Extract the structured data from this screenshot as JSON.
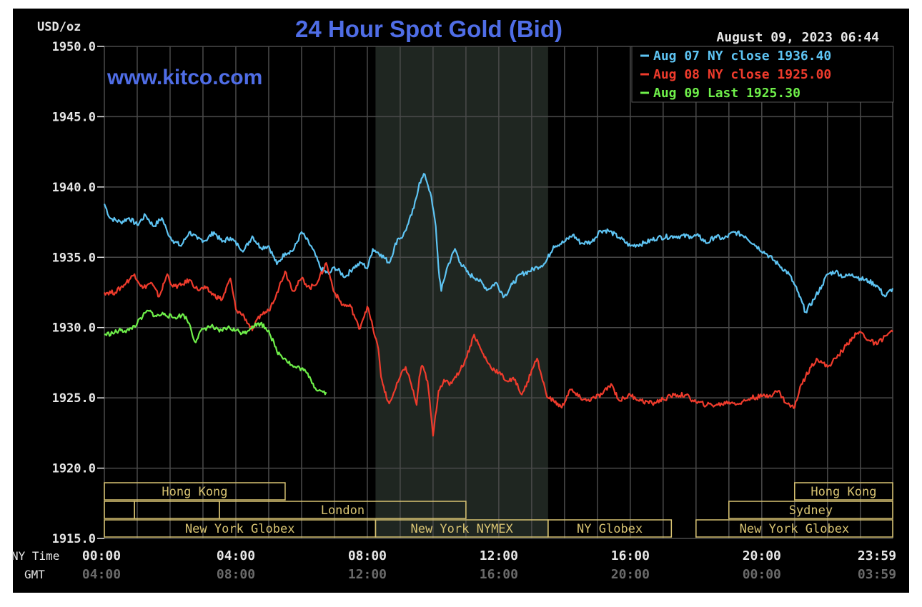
{
  "chart_data": {
    "type": "line",
    "title": "24 Hour Spot Gold (Bid)",
    "watermark": "www.kitco.com",
    "ylabel": "USD/oz",
    "date_label": "August 09, 2023 06:44",
    "ylim": [
      1915,
      1950
    ],
    "y_ticks": [
      1950,
      1945,
      1940,
      1935,
      1930,
      1925,
      1920,
      1915
    ],
    "y_tick_labels": [
      "1950.0",
      "1945.0",
      "1940.0",
      "1935.0",
      "1930.0",
      "1925.0",
      "1920.0",
      "1915.0"
    ],
    "xlim": [
      0,
      1439
    ],
    "x_row_labels": {
      "ny": "NY Time",
      "gmt": "GMT"
    },
    "x_ticks": [
      {
        "min": 0,
        "ny": "00:00",
        "gmt": "04:00"
      },
      {
        "min": 240,
        "ny": "04:00",
        "gmt": "08:00"
      },
      {
        "min": 480,
        "ny": "08:00",
        "gmt": "12:00"
      },
      {
        "min": 720,
        "ny": "12:00",
        "gmt": "16:00"
      },
      {
        "min": 960,
        "ny": "16:00",
        "gmt": "20:00"
      },
      {
        "min": 1200,
        "ny": "20:00",
        "gmt": "00:00"
      },
      {
        "min": 1439,
        "ny": "23:59",
        "gmt": "03:59"
      }
    ],
    "shaded_range": [
      495,
      810
    ],
    "legend": [
      {
        "text": "Aug 07 NY close 1936.40",
        "color": "#5ec4f3"
      },
      {
        "text": "Aug 08 NY close 1925.00",
        "color": "#ef3b2c"
      },
      {
        "text": "Aug 09 Last 1925.30",
        "color": "#6ff04a"
      }
    ],
    "sessions": [
      {
        "label": "Hong Kong",
        "start": 0,
        "end": 330,
        "row": 0
      },
      {
        "label": "",
        "start": 0,
        "end": 55,
        "row": 1
      },
      {
        "label": "",
        "start": 55,
        "end": 210,
        "row": 1
      },
      {
        "label": "London",
        "start": 210,
        "end": 660,
        "row": 1
      },
      {
        "label": "New York Globex",
        "start": 0,
        "end": 495,
        "row": 2
      },
      {
        "label": "New York NYMEX",
        "start": 495,
        "end": 810,
        "row": 2
      },
      {
        "label": "NY Globex",
        "start": 810,
        "end": 1035,
        "row": 2
      },
      {
        "label": "Hong Kong",
        "start": 1260,
        "end": 1439,
        "row": 0
      },
      {
        "label": "Sydney",
        "start": 1140,
        "end": 1439,
        "row": 1
      },
      {
        "label": "New York Globex",
        "start": 1080,
        "end": 1439,
        "row": 2
      }
    ],
    "series": [
      {
        "name": "Aug 07",
        "color": "#5ec4f3",
        "x": [
          0,
          10,
          30,
          45,
          60,
          75,
          90,
          105,
          115,
          125,
          140,
          155,
          170,
          185,
          200,
          215,
          230,
          245,
          255,
          270,
          285,
          300,
          315,
          330,
          345,
          360,
          380,
          395,
          410,
          420,
          440,
          455,
          470,
          480,
          490,
          505,
          520,
          535,
          545,
          555,
          565,
          575,
          585,
          595,
          605,
          610,
          615,
          625,
          640,
          650,
          665,
          680,
          700,
          715,
          730,
          745,
          760,
          775,
          790,
          805,
          820,
          840,
          855,
          870,
          890,
          905,
          920,
          940,
          960,
          985,
          1010,
          1040,
          1070,
          1085,
          1100,
          1115,
          1130,
          1150,
          1170,
          1190,
          1210,
          1230,
          1250,
          1265,
          1280,
          1295,
          1310,
          1320,
          1335,
          1350,
          1365,
          1380,
          1395,
          1410,
          1425,
          1439
        ],
        "values": [
          1938.8,
          1937.8,
          1937.5,
          1937.8,
          1937.3,
          1938.0,
          1937.2,
          1937.8,
          1936.8,
          1936.2,
          1935.8,
          1936.8,
          1936.3,
          1936.2,
          1936.8,
          1936.1,
          1936.4,
          1935.8,
          1935.5,
          1936.5,
          1935.7,
          1935.8,
          1934.5,
          1935.3,
          1935.5,
          1936.8,
          1935.6,
          1934.2,
          1933.8,
          1934.3,
          1933.6,
          1934.3,
          1934.6,
          1934.2,
          1935.6,
          1935.2,
          1934.6,
          1936.3,
          1936.5,
          1937.4,
          1938.5,
          1940.3,
          1940.9,
          1939.6,
          1937.2,
          1934.2,
          1932.6,
          1934.2,
          1935.6,
          1934.6,
          1933.8,
          1933.5,
          1932.7,
          1933.2,
          1932.2,
          1933.1,
          1933.8,
          1934.0,
          1934.3,
          1934.6,
          1935.8,
          1936.1,
          1936.6,
          1936.0,
          1936.1,
          1936.9,
          1936.9,
          1936.4,
          1935.8,
          1936.0,
          1936.4,
          1936.5,
          1936.5,
          1936.5,
          1936.0,
          1936.5,
          1936.3,
          1936.8,
          1936.5,
          1935.8,
          1935.2,
          1934.5,
          1933.8,
          1932.6,
          1931.1,
          1932.0,
          1933.0,
          1933.8,
          1934.0,
          1933.6,
          1933.8,
          1933.5,
          1933.3,
          1933.0,
          1932.2,
          1932.8
        ]
      },
      {
        "name": "Aug 08",
        "color": "#ef3b2c",
        "x": [
          0,
          20,
          40,
          55,
          70,
          85,
          100,
          115,
          125,
          140,
          155,
          170,
          185,
          200,
          215,
          230,
          240,
          255,
          270,
          285,
          300,
          315,
          330,
          345,
          360,
          375,
          390,
          405,
          420,
          435,
          450,
          465,
          480,
          490,
          500,
          505,
          510,
          515,
          520,
          530,
          540,
          550,
          560,
          570,
          575,
          580,
          590,
          600,
          610,
          620,
          630,
          640,
          650,
          660,
          675,
          690,
          705,
          720,
          735,
          750,
          760,
          770,
          780,
          790,
          800,
          810,
          820,
          835,
          850,
          865,
          880,
          895,
          910,
          925,
          940,
          960,
          980,
          1000,
          1020,
          1040,
          1060,
          1080,
          1100,
          1120,
          1140,
          1160,
          1180,
          1200,
          1215,
          1230,
          1245,
          1260,
          1270,
          1280,
          1290,
          1300,
          1310,
          1320,
          1335,
          1350,
          1365,
          1380,
          1395,
          1410,
          1425,
          1439
        ],
        "values": [
          1932.5,
          1932.5,
          1933.2,
          1933.8,
          1932.8,
          1933.2,
          1932.2,
          1933.8,
          1932.9,
          1933.0,
          1933.4,
          1932.7,
          1932.8,
          1932.3,
          1932.0,
          1933.5,
          1931.3,
          1930.8,
          1929.8,
          1930.9,
          1931.2,
          1932.5,
          1934.0,
          1932.6,
          1933.5,
          1932.8,
          1933.3,
          1934.6,
          1932.5,
          1931.6,
          1931.5,
          1929.9,
          1931.5,
          1930.0,
          1928.5,
          1926.5,
          1925.8,
          1925.0,
          1924.6,
          1925.5,
          1926.5,
          1927.2,
          1926.0,
          1924.5,
          1926.5,
          1927.3,
          1926.2,
          1922.3,
          1925.5,
          1926.3,
          1925.9,
          1926.5,
          1927.0,
          1927.8,
          1929.5,
          1928.2,
          1927.2,
          1926.8,
          1926.2,
          1926.3,
          1925.3,
          1925.8,
          1927.0,
          1927.8,
          1926.2,
          1925.0,
          1924.8,
          1924.3,
          1925.6,
          1925.1,
          1924.8,
          1925.0,
          1925.3,
          1926.0,
          1924.8,
          1925.2,
          1924.8,
          1924.6,
          1924.9,
          1925.2,
          1925.2,
          1924.7,
          1924.5,
          1924.5,
          1924.7,
          1924.6,
          1925.0,
          1925.1,
          1925.2,
          1925.5,
          1924.6,
          1924.3,
          1925.8,
          1926.5,
          1927.2,
          1927.8,
          1927.5,
          1927.2,
          1927.8,
          1928.5,
          1929.3,
          1929.7,
          1929.1,
          1928.8,
          1929.4,
          1929.7
        ]
      },
      {
        "name": "Aug 09",
        "color": "#6ff04a",
        "x": [
          0,
          15,
          30,
          45,
          60,
          70,
          80,
          95,
          110,
          125,
          135,
          145,
          155,
          165,
          180,
          195,
          210,
          225,
          240,
          255,
          270,
          285,
          300,
          315,
          330,
          345,
          360,
          375,
          385,
          395,
          405
        ],
        "values": [
          1929.5,
          1929.6,
          1929.8,
          1929.8,
          1930.3,
          1930.8,
          1931.2,
          1930.8,
          1931.0,
          1930.7,
          1930.8,
          1930.9,
          1930.3,
          1929.0,
          1929.9,
          1930.1,
          1929.7,
          1930.0,
          1929.8,
          1929.6,
          1930.1,
          1930.3,
          1929.8,
          1928.3,
          1927.8,
          1927.2,
          1927.1,
          1926.5,
          1925.7,
          1925.5,
          1925.4
        ]
      }
    ]
  }
}
